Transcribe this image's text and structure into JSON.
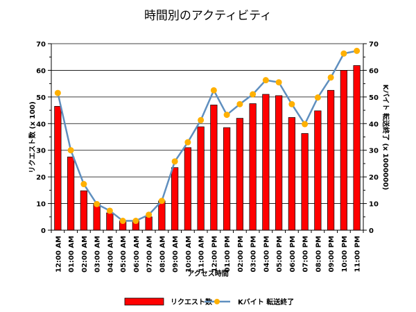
{
  "chart_data": {
    "type": "bar+line",
    "title": "時間別のアクティビティ",
    "xlabel": "アクセス時間",
    "ylabel": "リクエスト数 (x 100)",
    "y2label": "Kバイト 転送終了 (x 1000000)",
    "ylim": [
      0,
      70
    ],
    "y2lim": [
      0,
      70
    ],
    "yticks": [
      0,
      10,
      20,
      30,
      40,
      50,
      60,
      70
    ],
    "grid": true,
    "legend_position": "bottom",
    "categories": [
      "12:00 AM",
      "01:00 AM",
      "02:00 AM",
      "03:00 AM",
      "04:00 AM",
      "05:00 AM",
      "06:00 AM",
      "07:00 AM",
      "08:00 AM",
      "09:00 AM",
      "10:00 AM",
      "11:00 AM",
      "12:00 PM",
      "01:00 PM",
      "02:00 PM",
      "03:00 PM",
      "04:00 PM",
      "05:00 PM",
      "06:00 PM",
      "07:00 PM",
      "08:00 PM",
      "09:00 PM",
      "10:00 PM",
      "11:00 PM"
    ],
    "series": [
      {
        "name": "リクエスト数",
        "kind": "bar",
        "axis": "left",
        "color": "#ff0000",
        "values": [
          46.5,
          27.5,
          14.8,
          9.8,
          6.5,
          3.5,
          3.5,
          5,
          11,
          23.5,
          31,
          38.8,
          47,
          38.5,
          42,
          47.5,
          51,
          50.5,
          42.3,
          36.3,
          44.8,
          52.5,
          60,
          61.8
        ]
      },
      {
        "name": "Kバイト 転送終了",
        "kind": "line",
        "axis": "right",
        "color": "#5f8fbf",
        "marker_color": "#ffb000",
        "values": [
          51.5,
          30,
          17.3,
          9.8,
          7.3,
          3.5,
          3.5,
          5.8,
          11,
          25.8,
          33,
          41.3,
          52.5,
          43.3,
          47.3,
          51,
          56.3,
          55.5,
          47.3,
          39.8,
          49.8,
          57.3,
          66.3,
          67.3
        ]
      }
    ]
  }
}
